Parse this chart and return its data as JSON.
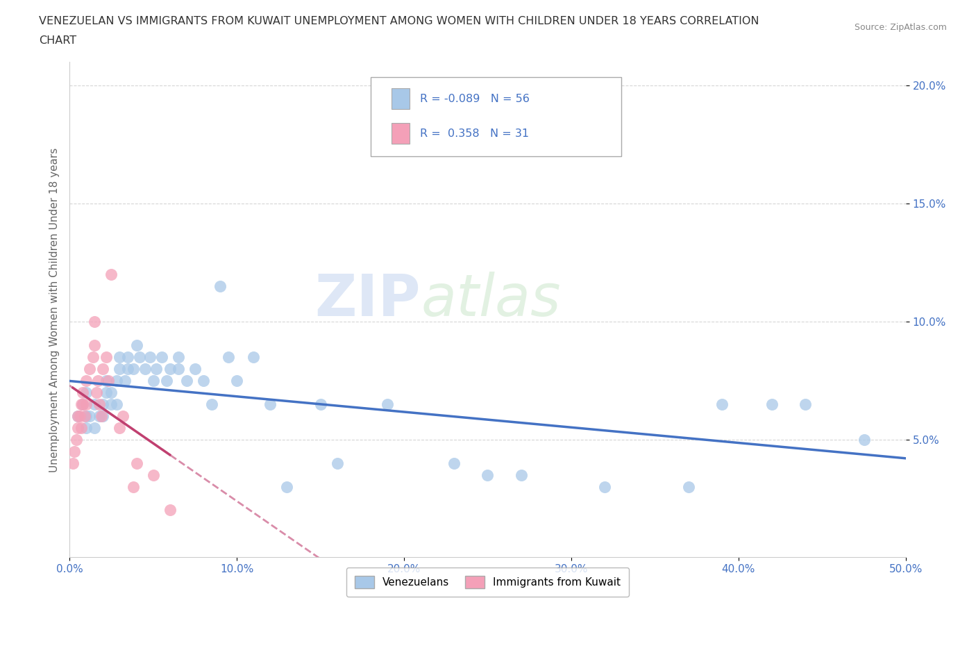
{
  "title_line1": "VENEZUELAN VS IMMIGRANTS FROM KUWAIT UNEMPLOYMENT AMONG WOMEN WITH CHILDREN UNDER 18 YEARS CORRELATION",
  "title_line2": "CHART",
  "source": "Source: ZipAtlas.com",
  "ylabel": "Unemployment Among Women with Children Under 18 years",
  "xlim": [
    0.0,
    0.5
  ],
  "ylim": [
    0.0,
    0.21
  ],
  "xticks": [
    0.0,
    0.1,
    0.2,
    0.3,
    0.4,
    0.5
  ],
  "xtick_labels": [
    "0.0%",
    "10.0%",
    "20.0%",
    "30.0%",
    "40.0%",
    "50.0%"
  ],
  "yticks": [
    0.05,
    0.1,
    0.15,
    0.2
  ],
  "ytick_labels": [
    "5.0%",
    "10.0%",
    "15.0%",
    "20.0%"
  ],
  "venezuelan_color": "#A8C8E8",
  "kuwait_color": "#F4A0B8",
  "trend_venezuelan_color": "#4472C4",
  "trend_kuwait_color": "#C04070",
  "watermark_zip": "ZIP",
  "watermark_atlas": "atlas",
  "legend_R_venezuelan": "-0.089",
  "legend_N_venezuelan": "56",
  "legend_R_kuwait": "0.358",
  "legend_N_kuwait": "31",
  "venezuelan_x": [
    0.005,
    0.008,
    0.01,
    0.01,
    0.01,
    0.012,
    0.015,
    0.015,
    0.018,
    0.02,
    0.02,
    0.022,
    0.022,
    0.025,
    0.025,
    0.028,
    0.028,
    0.03,
    0.03,
    0.033,
    0.035,
    0.035,
    0.038,
    0.04,
    0.042,
    0.045,
    0.048,
    0.05,
    0.052,
    0.055,
    0.058,
    0.06,
    0.065,
    0.065,
    0.07,
    0.075,
    0.08,
    0.085,
    0.09,
    0.095,
    0.1,
    0.11,
    0.12,
    0.13,
    0.15,
    0.16,
    0.19,
    0.23,
    0.25,
    0.27,
    0.32,
    0.37,
    0.39,
    0.42,
    0.44,
    0.475
  ],
  "venezuelan_y": [
    0.06,
    0.065,
    0.055,
    0.06,
    0.07,
    0.06,
    0.055,
    0.065,
    0.06,
    0.065,
    0.06,
    0.07,
    0.075,
    0.065,
    0.07,
    0.065,
    0.075,
    0.08,
    0.085,
    0.075,
    0.08,
    0.085,
    0.08,
    0.09,
    0.085,
    0.08,
    0.085,
    0.075,
    0.08,
    0.085,
    0.075,
    0.08,
    0.085,
    0.08,
    0.075,
    0.08,
    0.075,
    0.065,
    0.115,
    0.085,
    0.075,
    0.085,
    0.065,
    0.03,
    0.065,
    0.04,
    0.065,
    0.04,
    0.035,
    0.035,
    0.03,
    0.03,
    0.065,
    0.065,
    0.065,
    0.05
  ],
  "kuwait_x": [
    0.002,
    0.003,
    0.004,
    0.005,
    0.005,
    0.006,
    0.007,
    0.007,
    0.008,
    0.008,
    0.009,
    0.01,
    0.01,
    0.012,
    0.014,
    0.015,
    0.015,
    0.016,
    0.017,
    0.018,
    0.019,
    0.02,
    0.022,
    0.023,
    0.025,
    0.03,
    0.032,
    0.038,
    0.04,
    0.05,
    0.06
  ],
  "kuwait_y": [
    0.04,
    0.045,
    0.05,
    0.055,
    0.06,
    0.06,
    0.065,
    0.055,
    0.065,
    0.07,
    0.06,
    0.065,
    0.075,
    0.08,
    0.085,
    0.09,
    0.1,
    0.07,
    0.075,
    0.065,
    0.06,
    0.08,
    0.085,
    0.075,
    0.12,
    0.055,
    0.06,
    0.03,
    0.04,
    0.035,
    0.02
  ],
  "background_color": "#FFFFFF",
  "grid_color": "#CCCCCC"
}
